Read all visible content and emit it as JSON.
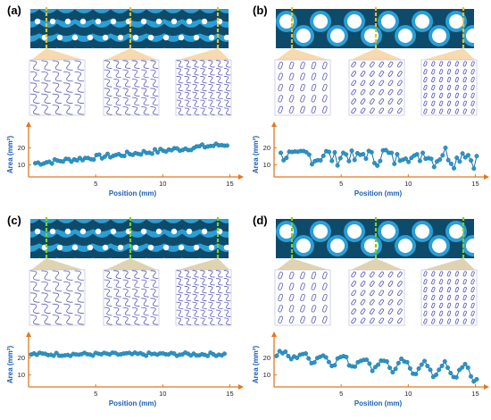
{
  "panels": [
    {
      "label": "(a)",
      "accent": "#e8941a",
      "cut": "#e6c21a",
      "scaffold": "labyrinth",
      "micro": "labyrinth",
      "chart_data": {
        "type": "scatter",
        "xlabel": "Position (mm)",
        "ylabel": "Area (mm²)",
        "xticks": [
          "5",
          "10",
          "15"
        ],
        "yticks": [
          "10",
          "20"
        ],
        "xlim": [
          0,
          15.5
        ],
        "ylim": [
          3,
          29
        ],
        "start": 0.5,
        "end": 14.8,
        "trend": [
          11,
          22
        ],
        "amp": 1.4,
        "osc": 0
      }
    },
    {
      "label": "(b)",
      "accent": "#e8941a",
      "cut": "#e6c21a",
      "scaffold": "holes",
      "micro": "rods",
      "chart_data": {
        "type": "scatter",
        "xlabel": "Position (mm)",
        "ylabel": "Area (mm²)",
        "xticks": [
          "5",
          "10",
          "15"
        ],
        "yticks": [
          "10",
          "20"
        ],
        "xlim": [
          0,
          15.5
        ],
        "ylim": [
          3,
          29
        ],
        "start": 0.5,
        "end": 15.1,
        "trend": [
          15,
          15
        ],
        "amp": 4.2,
        "osc": 2.0
      }
    },
    {
      "label": "(c)",
      "accent": "#a5801f",
      "cut": "#7fd21a",
      "scaffold": "labyrinth",
      "micro": "labyrinth",
      "chart_data": {
        "type": "scatter",
        "xlabel": "Position (mm)",
        "ylabel": "Area (mm²)",
        "xticks": [
          "5",
          "10",
          "15"
        ],
        "yticks": [
          "10",
          "20"
        ],
        "xlim": [
          0,
          15.5
        ],
        "ylim": [
          3,
          29
        ],
        "start": 0.2,
        "end": 14.6,
        "trend": [
          22,
          22
        ],
        "amp": 1.0,
        "osc": 0
      }
    },
    {
      "label": "(d)",
      "accent": "#a5801f",
      "cut": "#7fd21a",
      "scaffold": "holes",
      "micro": "rods",
      "chart_data": {
        "type": "scatter",
        "xlabel": "Position (mm)",
        "ylabel": "Area (mm²)",
        "xticks": [
          "5",
          "10",
          "15"
        ],
        "yticks": [
          "10",
          "20"
        ],
        "xlim": [
          0,
          15.5
        ],
        "ylim": [
          3,
          29
        ],
        "start": 0.2,
        "end": 15.1,
        "trend": [
          22,
          11
        ],
        "amp": 1.6,
        "osc": 3.0
      }
    }
  ],
  "colors": {
    "scaffold_bg": "#2a9fd6",
    "scaffold_dark": "#0e4a6a",
    "scaffold_deep": "#083650",
    "pore": "#ffffff",
    "micro_line": "#5a5ab8",
    "point": "#2a94c6",
    "point_line": "#1c6f99",
    "axis": "#e07820",
    "axis_label": "#1b5fb8"
  }
}
